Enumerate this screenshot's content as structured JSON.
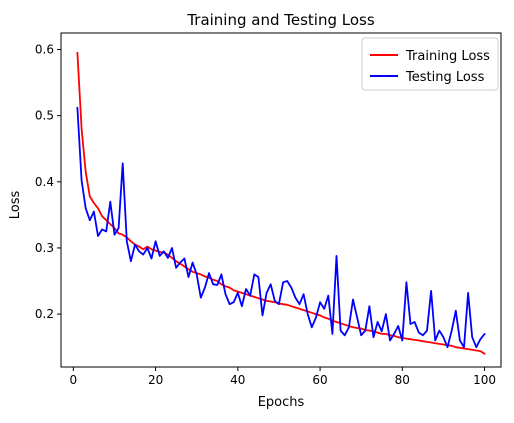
{
  "chart_data": {
    "type": "line",
    "title": "Training  and Testing Loss",
    "xlabel": "Epochs",
    "ylabel": "Loss",
    "xlim": [
      -3,
      104
    ],
    "ylim": [
      0.12,
      0.625
    ],
    "xticks": [
      0,
      20,
      40,
      60,
      80,
      100
    ],
    "yticks": [
      0.2,
      0.3,
      0.4,
      0.5,
      0.6
    ],
    "xtick_labels": [
      "0",
      "20",
      "40",
      "60",
      "80",
      "100"
    ],
    "ytick_labels": [
      "0.2",
      "0.3",
      "0.4",
      "0.5",
      "0.6"
    ],
    "grid": false,
    "legend_position": "top-right",
    "x": [
      1,
      2,
      3,
      4,
      5,
      6,
      7,
      8,
      9,
      10,
      11,
      12,
      13,
      14,
      15,
      16,
      17,
      18,
      19,
      20,
      21,
      22,
      23,
      24,
      25,
      26,
      27,
      28,
      29,
      30,
      31,
      32,
      33,
      34,
      35,
      36,
      37,
      38,
      39,
      40,
      41,
      42,
      43,
      44,
      45,
      46,
      47,
      48,
      49,
      50,
      51,
      52,
      53,
      54,
      55,
      56,
      57,
      58,
      59,
      60,
      61,
      62,
      63,
      64,
      65,
      66,
      67,
      68,
      69,
      70,
      71,
      72,
      73,
      74,
      75,
      76,
      77,
      78,
      79,
      80,
      81,
      82,
      83,
      84,
      85,
      86,
      87,
      88,
      89,
      90,
      91,
      92,
      93,
      94,
      95,
      96,
      97,
      98,
      99,
      100
    ],
    "series": [
      {
        "name": "Training Loss",
        "color": "#ff0000",
        "values": [
          0.595,
          0.48,
          0.415,
          0.378,
          0.368,
          0.36,
          0.348,
          0.342,
          0.336,
          0.33,
          0.322,
          0.32,
          0.316,
          0.31,
          0.305,
          0.302,
          0.298,
          0.302,
          0.298,
          0.296,
          0.294,
          0.293,
          0.29,
          0.285,
          0.28,
          0.276,
          0.272,
          0.268,
          0.264,
          0.262,
          0.26,
          0.257,
          0.255,
          0.252,
          0.25,
          0.245,
          0.242,
          0.24,
          0.236,
          0.234,
          0.232,
          0.23,
          0.228,
          0.226,
          0.224,
          0.222,
          0.22,
          0.219,
          0.218,
          0.216,
          0.215,
          0.214,
          0.212,
          0.21,
          0.208,
          0.206,
          0.204,
          0.202,
          0.2,
          0.198,
          0.195,
          0.193,
          0.19,
          0.188,
          0.186,
          0.184,
          0.182,
          0.18,
          0.179,
          0.178,
          0.176,
          0.175,
          0.174,
          0.172,
          0.17,
          0.17,
          0.168,
          0.167,
          0.165,
          0.164,
          0.163,
          0.162,
          0.161,
          0.16,
          0.159,
          0.158,
          0.157,
          0.156,
          0.155,
          0.154,
          0.153,
          0.152,
          0.15,
          0.149,
          0.148,
          0.147,
          0.146,
          0.145,
          0.144,
          0.14
        ]
      },
      {
        "name": "Testing Loss",
        "color": "#0000ff",
        "values": [
          0.512,
          0.402,
          0.36,
          0.342,
          0.355,
          0.318,
          0.328,
          0.325,
          0.37,
          0.32,
          0.33,
          0.428,
          0.31,
          0.28,
          0.305,
          0.295,
          0.29,
          0.3,
          0.284,
          0.31,
          0.288,
          0.295,
          0.285,
          0.3,
          0.27,
          0.278,
          0.284,
          0.256,
          0.278,
          0.26,
          0.225,
          0.24,
          0.262,
          0.245,
          0.244,
          0.26,
          0.23,
          0.215,
          0.218,
          0.232,
          0.212,
          0.238,
          0.228,
          0.26,
          0.256,
          0.198,
          0.232,
          0.245,
          0.22,
          0.215,
          0.248,
          0.25,
          0.24,
          0.225,
          0.215,
          0.23,
          0.2,
          0.18,
          0.195,
          0.218,
          0.208,
          0.228,
          0.17,
          0.288,
          0.175,
          0.168,
          0.18,
          0.222,
          0.195,
          0.168,
          0.175,
          0.212,
          0.165,
          0.188,
          0.174,
          0.2,
          0.16,
          0.17,
          0.182,
          0.16,
          0.248,
          0.185,
          0.188,
          0.172,
          0.168,
          0.175,
          0.235,
          0.16,
          0.175,
          0.165,
          0.15,
          0.175,
          0.205,
          0.16,
          0.15,
          0.232,
          0.165,
          0.15,
          0.162,
          0.17
        ]
      }
    ]
  }
}
